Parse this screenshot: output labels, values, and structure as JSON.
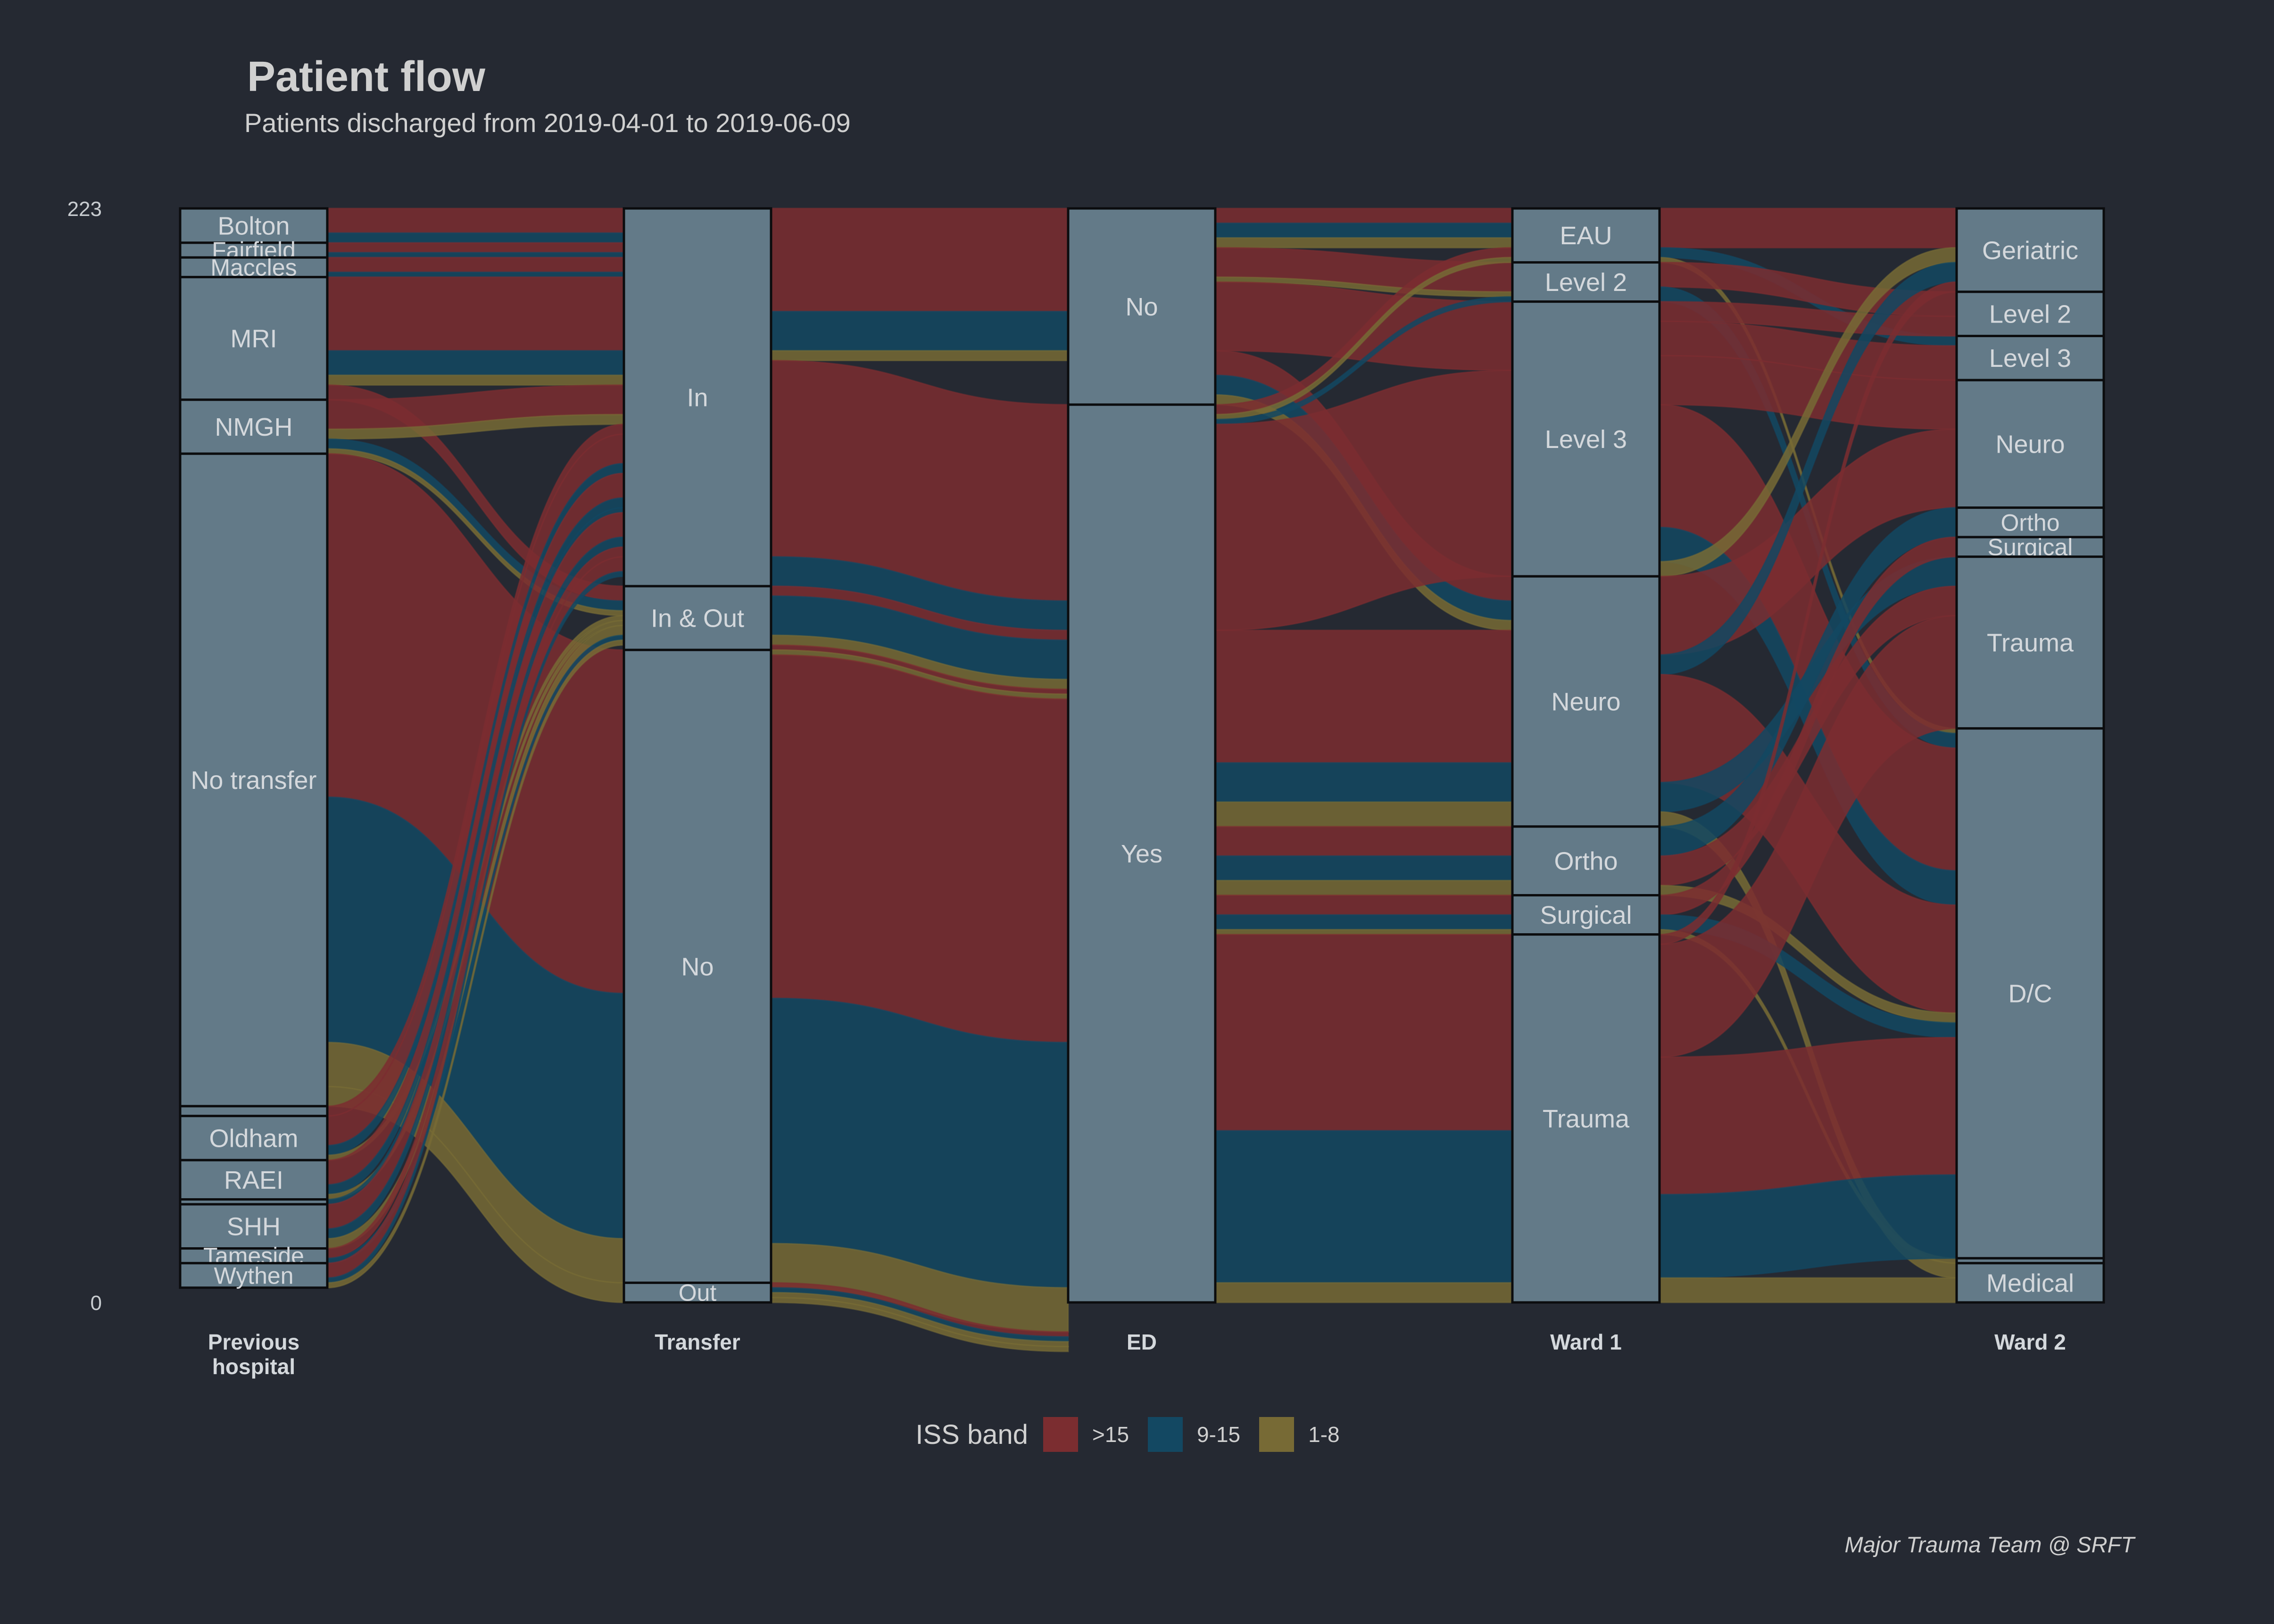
{
  "title": "Patient flow",
  "subtitle": "Patients discharged from 2019-04-01 to 2019-06-09",
  "caption": "Major Trauma Team @ SRFT",
  "chart_data": {
    "type": "alluvial",
    "total": 223,
    "ylim": [
      0,
      223
    ],
    "y_ticks": [
      0,
      223
    ],
    "grid": false,
    "legend": {
      "title": "ISS band",
      "placement": "bottom",
      "entries": [
        {
          "label": ">15",
          "color": "#7b2d30"
        },
        {
          "label": "9-15",
          "color": "#134862"
        },
        {
          "label": "1-8",
          "color": "#776a35"
        }
      ]
    },
    "axes": [
      {
        "name": "Previous hospital",
        "strata": [
          {
            "label": "Bolton",
            "value": 7
          },
          {
            "label": "Fairfield",
            "value": 3
          },
          {
            "label": "Maccles",
            "value": 4
          },
          {
            "label": "MRI",
            "value": 25
          },
          {
            "label": "NMGH",
            "value": 11
          },
          {
            "label": "No transfer",
            "value": 133
          },
          {
            "label": "",
            "value": 2
          },
          {
            "label": "Oldham",
            "value": 9
          },
          {
            "label": "RAEI",
            "value": 8
          },
          {
            "label": "",
            "value": 1
          },
          {
            "label": "SHH",
            "value": 9
          },
          {
            "label": "Tameside",
            "value": 3
          },
          {
            "label": "Wythen",
            "value": 5
          }
        ]
      },
      {
        "name": "Transfer",
        "strata": [
          {
            "label": "In",
            "value": 77
          },
          {
            "label": "In & Out",
            "value": 13
          },
          {
            "label": "No",
            "value": 129
          },
          {
            "label": "Out",
            "value": 4
          }
        ]
      },
      {
        "name": "ED",
        "strata": [
          {
            "label": "No",
            "value": 40
          },
          {
            "label": "Yes",
            "value": 183
          }
        ]
      },
      {
        "name": "Ward 1",
        "strata": [
          {
            "label": "EAU",
            "value": 11
          },
          {
            "label": "Level 2",
            "value": 8
          },
          {
            "label": "Level 3",
            "value": 56
          },
          {
            "label": "Neuro",
            "value": 51
          },
          {
            "label": "Ortho",
            "value": 14
          },
          {
            "label": "Surgical",
            "value": 8
          },
          {
            "label": "Trauma",
            "value": 75
          }
        ]
      },
      {
        "name": "Ward 2",
        "strata": [
          {
            "label": "Geriatric",
            "value": 17
          },
          {
            "label": "Level 2",
            "value": 9
          },
          {
            "label": "Level 3",
            "value": 9
          },
          {
            "label": "Neuro",
            "value": 26
          },
          {
            "label": "Ortho",
            "value": 6
          },
          {
            "label": "Surgical",
            "value": 4
          },
          {
            "label": "Trauma",
            "value": 35
          },
          {
            "label": "D/C",
            "value": 108
          },
          {
            "label": "",
            "value": 1
          },
          {
            "label": "Medical",
            "value": 8
          }
        ]
      }
    ],
    "flows": [
      {
        "x": 0,
        "from": 0,
        "to": 0,
        "value": 5,
        "band": ">15"
      },
      {
        "x": 0,
        "from": 0,
        "to": 0,
        "value": 2,
        "band": "9-15"
      },
      {
        "x": 0,
        "from": 1,
        "to": 0,
        "value": 2,
        "band": ">15"
      },
      {
        "x": 0,
        "from": 1,
        "to": 0,
        "value": 1,
        "band": "9-15"
      },
      {
        "x": 0,
        "from": 2,
        "to": 0,
        "value": 3,
        "band": ">15"
      },
      {
        "x": 0,
        "from": 2,
        "to": 0,
        "value": 1,
        "band": "9-15"
      },
      {
        "x": 0,
        "from": 3,
        "to": 0,
        "value": 15,
        "band": ">15"
      },
      {
        "x": 0,
        "from": 3,
        "to": 0,
        "value": 5,
        "band": "9-15"
      },
      {
        "x": 0,
        "from": 3,
        "to": 0,
        "value": 2,
        "band": "1-8"
      },
      {
        "x": 0,
        "from": 3,
        "to": 1,
        "value": 3,
        "band": ">15"
      },
      {
        "x": 0,
        "from": 4,
        "to": 0,
        "value": 6,
        "band": ">15"
      },
      {
        "x": 0,
        "from": 4,
        "to": 0,
        "value": 2,
        "band": "1-8"
      },
      {
        "x": 0,
        "from": 4,
        "to": 1,
        "value": 2,
        "band": "9-15"
      },
      {
        "x": 0,
        "from": 4,
        "to": 1,
        "value": 1,
        "band": "1-8"
      },
      {
        "x": 0,
        "from": 5,
        "to": 2,
        "value": 70,
        "band": ">15"
      },
      {
        "x": 0,
        "from": 5,
        "to": 2,
        "value": 50,
        "band": "9-15"
      },
      {
        "x": 0,
        "from": 5,
        "to": 2,
        "value": 9,
        "band": "1-8"
      },
      {
        "x": 0,
        "from": 5,
        "to": 3,
        "value": 4,
        "band": "1-8"
      },
      {
        "x": 0,
        "from": 6,
        "to": 0,
        "value": 2,
        "band": ">15"
      },
      {
        "x": 0,
        "from": 7,
        "to": 0,
        "value": 6,
        "band": ">15"
      },
      {
        "x": 0,
        "from": 7,
        "to": 0,
        "value": 2,
        "band": "9-15"
      },
      {
        "x": 0,
        "from": 7,
        "to": 1,
        "value": 1,
        "band": "1-8"
      },
      {
        "x": 0,
        "from": 8,
        "to": 0,
        "value": 5,
        "band": ">15"
      },
      {
        "x": 0,
        "from": 8,
        "to": 0,
        "value": 2,
        "band": "9-15"
      },
      {
        "x": 0,
        "from": 8,
        "to": 1,
        "value": 1,
        "band": "1-8"
      },
      {
        "x": 0,
        "from": 9,
        "to": 0,
        "value": 1,
        "band": "9-15"
      },
      {
        "x": 0,
        "from": 10,
        "to": 0,
        "value": 5,
        "band": ">15"
      },
      {
        "x": 0,
        "from": 10,
        "to": 0,
        "value": 2,
        "band": "9-15"
      },
      {
        "x": 0,
        "from": 10,
        "to": 1,
        "value": 2,
        "band": "1-8"
      },
      {
        "x": 0,
        "from": 11,
        "to": 0,
        "value": 2,
        "band": ">15"
      },
      {
        "x": 0,
        "from": 11,
        "to": 1,
        "value": 1,
        "band": "9-15"
      },
      {
        "x": 0,
        "from": 12,
        "to": 0,
        "value": 3,
        "band": ">15"
      },
      {
        "x": 0,
        "from": 12,
        "to": 0,
        "value": 1,
        "band": "9-15"
      },
      {
        "x": 0,
        "from": 12,
        "to": 1,
        "value": 1,
        "band": "1-8"
      },
      {
        "x": 1,
        "from": 0,
        "to": 0,
        "value": 21,
        "band": ">15"
      },
      {
        "x": 1,
        "from": 0,
        "to": 0,
        "value": 8,
        "band": "9-15"
      },
      {
        "x": 1,
        "from": 0,
        "to": 0,
        "value": 2,
        "band": "1-8"
      },
      {
        "x": 1,
        "from": 0,
        "to": 1,
        "value": 40,
        "band": ">15"
      },
      {
        "x": 1,
        "from": 0,
        "to": 1,
        "value": 6,
        "band": "9-15"
      },
      {
        "x": 1,
        "from": 1,
        "to": 1,
        "value": 2,
        "band": ">15"
      },
      {
        "x": 1,
        "from": 1,
        "to": 1,
        "value": 8,
        "band": "9-15"
      },
      {
        "x": 1,
        "from": 1,
        "to": 1,
        "value": 2,
        "band": "1-8"
      },
      {
        "x": 1,
        "from": 1,
        "to": 1,
        "value": 1,
        "band": ">15"
      },
      {
        "x": 1,
        "from": 2,
        "to": 1,
        "value": 1,
        "band": "1-8"
      },
      {
        "x": 1,
        "from": 2,
        "to": 1,
        "value": 70,
        "band": ">15"
      },
      {
        "x": 1,
        "from": 2,
        "to": 1,
        "value": 50,
        "band": "9-15"
      },
      {
        "x": 1,
        "from": 2,
        "to": 1,
        "value": 9,
        "band": "1-8"
      },
      {
        "x": 1,
        "from": 3,
        "to": 1,
        "value": 1,
        "band": ">15"
      },
      {
        "x": 1,
        "from": 3,
        "to": 1,
        "value": 1,
        "band": "9-15"
      },
      {
        "x": 1,
        "from": 3,
        "to": 1,
        "value": 1,
        "band": "1-8"
      },
      {
        "x": 1,
        "from": 3,
        "to": 1,
        "value": 1,
        "band": "1-8"
      },
      {
        "x": 2,
        "from": 0,
        "to": 0,
        "value": 3,
        "band": ">15"
      },
      {
        "x": 2,
        "from": 0,
        "to": 0,
        "value": 3,
        "band": "9-15"
      },
      {
        "x": 2,
        "from": 0,
        "to": 0,
        "value": 2,
        "band": "1-8"
      },
      {
        "x": 2,
        "from": 0,
        "to": 1,
        "value": 6,
        "band": ">15"
      },
      {
        "x": 2,
        "from": 0,
        "to": 1,
        "value": 1,
        "band": "1-8"
      },
      {
        "x": 2,
        "from": 0,
        "to": 2,
        "value": 14,
        "band": ">15"
      },
      {
        "x": 2,
        "from": 0,
        "to": 3,
        "value": 5,
        "band": ">15"
      },
      {
        "x": 2,
        "from": 0,
        "to": 3,
        "value": 4,
        "band": "9-15"
      },
      {
        "x": 2,
        "from": 0,
        "to": 3,
        "value": 2,
        "band": "1-8"
      },
      {
        "x": 2,
        "from": 1,
        "to": 0,
        "value": 2,
        "band": ">15"
      },
      {
        "x": 2,
        "from": 1,
        "to": 0,
        "value": 1,
        "band": "1-8"
      },
      {
        "x": 2,
        "from": 1,
        "to": 1,
        "value": 1,
        "band": "9-15"
      },
      {
        "x": 2,
        "from": 1,
        "to": 2,
        "value": 42,
        "band": ">15"
      },
      {
        "x": 2,
        "from": 1,
        "to": 3,
        "value": 27,
        "band": ">15"
      },
      {
        "x": 2,
        "from": 1,
        "to": 3,
        "value": 8,
        "band": "9-15"
      },
      {
        "x": 2,
        "from": 1,
        "to": 3,
        "value": 5,
        "band": "1-8"
      },
      {
        "x": 2,
        "from": 1,
        "to": 4,
        "value": 6,
        "band": ">15"
      },
      {
        "x": 2,
        "from": 1,
        "to": 4,
        "value": 5,
        "band": "9-15"
      },
      {
        "x": 2,
        "from": 1,
        "to": 4,
        "value": 3,
        "band": "1-8"
      },
      {
        "x": 2,
        "from": 1,
        "to": 5,
        "value": 4,
        "band": ">15"
      },
      {
        "x": 2,
        "from": 1,
        "to": 5,
        "value": 3,
        "band": "9-15"
      },
      {
        "x": 2,
        "from": 1,
        "to": 5,
        "value": 1,
        "band": "1-8"
      },
      {
        "x": 2,
        "from": 1,
        "to": 6,
        "value": 40,
        "band": ">15"
      },
      {
        "x": 2,
        "from": 1,
        "to": 6,
        "value": 31,
        "band": "9-15"
      },
      {
        "x": 2,
        "from": 1,
        "to": 6,
        "value": 4,
        "band": "1-8"
      },
      {
        "x": 3,
        "from": 0,
        "to": 0,
        "value": 8,
        "band": ">15"
      },
      {
        "x": 3,
        "from": 0,
        "to": 2,
        "value": 2,
        "band": "9-15"
      },
      {
        "x": 3,
        "from": 0,
        "to": 7,
        "value": 1,
        "band": "1-8"
      },
      {
        "x": 3,
        "from": 1,
        "to": 1,
        "value": 5,
        "band": ">15"
      },
      {
        "x": 3,
        "from": 1,
        "to": 7,
        "value": 3,
        "band": "9-15"
      },
      {
        "x": 3,
        "from": 2,
        "to": 1,
        "value": 4,
        "band": ">15"
      },
      {
        "x": 3,
        "from": 2,
        "to": 2,
        "value": 7,
        "band": ">15"
      },
      {
        "x": 3,
        "from": 2,
        "to": 3,
        "value": 10,
        "band": ">15"
      },
      {
        "x": 3,
        "from": 2,
        "to": 7,
        "value": 25,
        "band": ">15"
      },
      {
        "x": 3,
        "from": 2,
        "to": 7,
        "value": 7,
        "band": "9-15"
      },
      {
        "x": 3,
        "from": 2,
        "to": 0,
        "value": 3,
        "band": "1-8"
      },
      {
        "x": 3,
        "from": 3,
        "to": 3,
        "value": 16,
        "band": ">15"
      },
      {
        "x": 3,
        "from": 3,
        "to": 0,
        "value": 4,
        "band": "9-15"
      },
      {
        "x": 3,
        "from": 3,
        "to": 7,
        "value": 22,
        "band": ">15"
      },
      {
        "x": 3,
        "from": 3,
        "to": 6,
        "value": 6,
        "band": "9-15"
      },
      {
        "x": 3,
        "from": 3,
        "to": 9,
        "value": 3,
        "band": "1-8"
      },
      {
        "x": 3,
        "from": 4,
        "to": 4,
        "value": 6,
        "band": "9-15"
      },
      {
        "x": 3,
        "from": 4,
        "to": 6,
        "value": 6,
        "band": ">15"
      },
      {
        "x": 3,
        "from": 4,
        "to": 7,
        "value": 2,
        "band": "1-8"
      },
      {
        "x": 3,
        "from": 5,
        "to": 5,
        "value": 4,
        "band": ">15"
      },
      {
        "x": 3,
        "from": 5,
        "to": 7,
        "value": 3,
        "band": "9-15"
      },
      {
        "x": 3,
        "from": 5,
        "to": 8,
        "value": 1,
        "band": "1-8"
      },
      {
        "x": 3,
        "from": 6,
        "to": 0,
        "value": 2,
        "band": ">15"
      },
      {
        "x": 3,
        "from": 6,
        "to": 6,
        "value": 23,
        "band": ">15"
      },
      {
        "x": 3,
        "from": 6,
        "to": 7,
        "value": 28,
        "band": ">15"
      },
      {
        "x": 3,
        "from": 6,
        "to": 7,
        "value": 17,
        "band": "9-15"
      },
      {
        "x": 3,
        "from": 6,
        "to": 9,
        "value": 5,
        "band": "1-8"
      }
    ]
  }
}
